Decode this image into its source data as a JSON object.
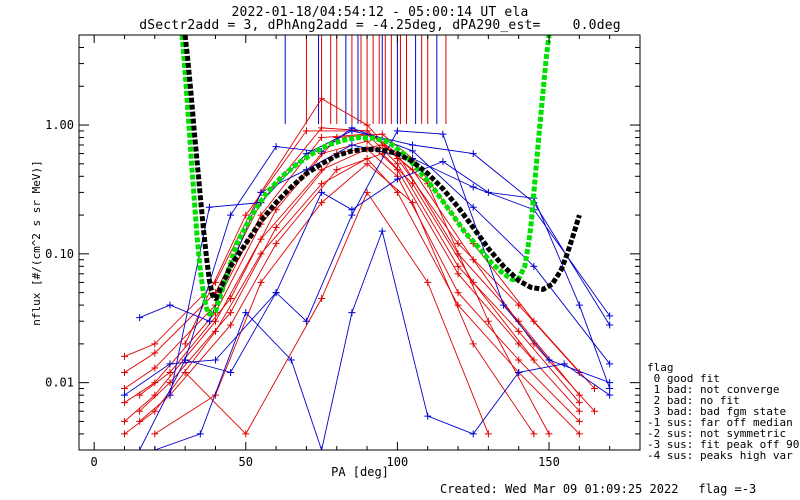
{
  "title_line1": "2022-01-18/04:54:12 - 05:00:14 UT ela",
  "title_line2": "dSectr2add = 3, dPhAng2add = -4.25deg, dPA290_est=    0.0deg",
  "footer": {
    "created": "Created: Wed Mar 09 01:09:25 2022",
    "flag": "flag =-3"
  },
  "legend": {
    "title": "flag",
    "items": [
      " 0 good fit",
      " 1 bad: not converge",
      " 2 bad: no fit",
      " 3 bad: bad fgm state",
      "-1 sus: far off median",
      "-2 sus: not symmetric",
      "-3 sus: fit peak off 90",
      "-4 sus: peaks high var"
    ]
  },
  "colors": {
    "red": "#e00000",
    "blue": "#0000d0",
    "green": "#00e000",
    "black": "#000000"
  },
  "chart_data": {
    "type": "line",
    "xlabel": "PA [deg]",
    "ylabel": "nflux [#/(cm^2 s sr MeV)]",
    "xlim": [
      -5,
      180
    ],
    "ylim": [
      0.003,
      5
    ],
    "ylog": true,
    "xticks": [
      0,
      50,
      100,
      150
    ],
    "xtick_labels": [
      "0",
      "50",
      "100",
      "150"
    ],
    "yticks": [
      0.01,
      0.1,
      1.0
    ],
    "ytick_labels": [
      "0.01",
      "0.10",
      "1.00"
    ],
    "vlines": [
      {
        "x": 63,
        "color": "blue"
      },
      {
        "x": 70,
        "color": "red"
      },
      {
        "x": 74,
        "color": "blue"
      },
      {
        "x": 75,
        "color": "red"
      },
      {
        "x": 78,
        "color": "red"
      },
      {
        "x": 80,
        "color": "red"
      },
      {
        "x": 83,
        "color": "blue"
      },
      {
        "x": 85,
        "color": "red"
      },
      {
        "x": 87,
        "color": "blue"
      },
      {
        "x": 88,
        "color": "red"
      },
      {
        "x": 90,
        "color": "red"
      },
      {
        "x": 92,
        "color": "red"
      },
      {
        "x": 94,
        "color": "red"
      },
      {
        "x": 95,
        "color": "blue"
      },
      {
        "x": 96,
        "color": "red"
      },
      {
        "x": 98,
        "color": "red"
      },
      {
        "x": 100,
        "color": "blue"
      },
      {
        "x": 101,
        "color": "red"
      },
      {
        "x": 103,
        "color": "red"
      },
      {
        "x": 106,
        "color": "blue"
      },
      {
        "x": 108,
        "color": "red"
      },
      {
        "x": 110,
        "color": "red"
      },
      {
        "x": 113,
        "color": "blue"
      },
      {
        "x": 116,
        "color": "red"
      }
    ],
    "fits": [
      {
        "name": "",
        "color": "green",
        "x": [
          29,
          30,
          31,
          32,
          33,
          34,
          35,
          36,
          37,
          38,
          40,
          43,
          47,
          52,
          57,
          62,
          67,
          72,
          77,
          82,
          87,
          92,
          97,
          102,
          107,
          112,
          117,
          122,
          127,
          131,
          135,
          138,
          140,
          142,
          143,
          144,
          145,
          146,
          147,
          148,
          149,
          150
        ],
        "y": [
          5,
          2.6,
          1.2,
          0.55,
          0.27,
          0.13,
          0.075,
          0.05,
          0.038,
          0.034,
          0.036,
          0.06,
          0.12,
          0.2,
          0.3,
          0.4,
          0.5,
          0.6,
          0.7,
          0.76,
          0.8,
          0.79,
          0.74,
          0.6,
          0.45,
          0.32,
          0.22,
          0.15,
          0.11,
          0.085,
          0.07,
          0.063,
          0.064,
          0.08,
          0.11,
          0.16,
          0.3,
          0.55,
          1.0,
          1.8,
          3.2,
          5
        ]
      },
      {
        "name": "",
        "color": "black",
        "x": [
          30,
          31,
          32,
          33,
          34,
          35,
          36,
          37,
          38,
          39,
          40,
          42,
          45,
          50,
          55,
          60,
          65,
          70,
          75,
          80,
          85,
          90,
          95,
          100,
          105,
          110,
          115,
          120,
          125,
          130,
          135,
          140,
          144,
          148,
          151,
          154,
          156,
          158,
          160
        ],
        "y": [
          5,
          3.0,
          1.7,
          0.9,
          0.5,
          0.28,
          0.16,
          0.095,
          0.062,
          0.048,
          0.045,
          0.056,
          0.08,
          0.12,
          0.18,
          0.25,
          0.33,
          0.42,
          0.5,
          0.58,
          0.63,
          0.65,
          0.64,
          0.6,
          0.52,
          0.42,
          0.32,
          0.23,
          0.16,
          0.11,
          0.08,
          0.062,
          0.055,
          0.053,
          0.058,
          0.075,
          0.1,
          0.14,
          0.2
        ]
      }
    ],
    "series": [
      {
        "color": "red",
        "x": [
          10,
          20,
          40,
          55,
          75,
          90,
          100,
          120,
          140,
          160
        ],
        "y": [
          0.016,
          0.02,
          0.06,
          0.3,
          1.6,
          1.0,
          0.55,
          0.12,
          0.04,
          0.012
        ]
      },
      {
        "color": "red",
        "x": [
          10,
          20,
          40,
          55,
          75,
          90,
          100,
          120,
          140,
          160
        ],
        "y": [
          0.012,
          0.017,
          0.05,
          0.25,
          0.95,
          0.9,
          0.6,
          0.1,
          0.03,
          0.008
        ]
      },
      {
        "color": "red",
        "x": [
          10,
          20,
          40,
          55,
          75,
          90,
          100,
          120,
          140,
          160
        ],
        "y": [
          0.009,
          0.013,
          0.04,
          0.2,
          0.8,
          0.85,
          0.5,
          0.08,
          0.025,
          0.007
        ]
      },
      {
        "color": "red",
        "x": [
          10,
          20,
          40,
          55,
          75,
          90,
          100,
          120,
          140,
          160
        ],
        "y": [
          0.007,
          0.01,
          0.035,
          0.17,
          0.6,
          0.75,
          0.45,
          0.07,
          0.02,
          0.006
        ]
      },
      {
        "color": "red",
        "x": [
          10,
          20,
          40,
          55,
          75,
          90,
          100,
          120,
          140,
          160
        ],
        "y": [
          0.005,
          0.008,
          0.03,
          0.13,
          0.45,
          0.65,
          0.4,
          0.05,
          0.015,
          0.005
        ]
      },
      {
        "color": "red",
        "x": [
          10,
          20,
          40,
          55,
          75,
          90,
          100,
          120,
          140,
          160
        ],
        "y": [
          0.004,
          0.006,
          0.025,
          0.1,
          0.35,
          0.55,
          0.3,
          0.04,
          0.012,
          0.004
        ]
      },
      {
        "color": "red",
        "x": [
          15,
          25,
          45,
          60,
          80,
          95,
          105,
          125,
          145,
          165
        ],
        "y": [
          0.008,
          0.012,
          0.045,
          0.22,
          0.8,
          0.85,
          0.55,
          0.12,
          0.03,
          0.009
        ]
      },
      {
        "color": "red",
        "x": [
          15,
          25,
          45,
          60,
          80,
          95,
          105,
          125,
          145,
          165
        ],
        "y": [
          0.006,
          0.01,
          0.035,
          0.16,
          0.6,
          0.7,
          0.45,
          0.09,
          0.02,
          0.006
        ]
      },
      {
        "color": "red",
        "x": [
          15,
          25,
          45,
          60,
          80,
          95,
          105,
          125,
          145
        ],
        "y": [
          0.005,
          0.008,
          0.028,
          0.12,
          0.45,
          0.6,
          0.35,
          0.06,
          0.015
        ]
      },
      {
        "color": "red",
        "x": [
          30,
          50,
          75,
          90,
          110,
          130
        ],
        "y": [
          0.012,
          0.004,
          0.045,
          0.3,
          0.06,
          0.004
        ]
      },
      {
        "color": "red",
        "x": [
          20,
          40,
          55,
          75,
          90,
          105,
          125,
          145
        ],
        "y": [
          0.004,
          0.008,
          0.06,
          0.25,
          0.5,
          0.25,
          0.02,
          0.004
        ]
      },
      {
        "color": "red",
        "x": [
          30,
          50,
          70,
          90,
          110,
          130,
          150
        ],
        "y": [
          0.02,
          0.2,
          0.9,
          0.9,
          0.35,
          0.03,
          0.004
        ]
      },
      {
        "color": "blue",
        "x": [
          15,
          25,
          38,
          55,
          70,
          85,
          105,
          125,
          145,
          170
        ],
        "y": [
          0.032,
          0.04,
          0.03,
          0.3,
          0.45,
          0.7,
          0.55,
          0.33,
          0.22,
          0.033
        ]
      },
      {
        "color": "blue",
        "x": [
          25,
          38,
          55,
          70,
          85,
          105,
          125,
          145,
          170
        ],
        "y": [
          0.008,
          0.23,
          0.25,
          0.6,
          0.9,
          0.7,
          0.6,
          0.25,
          0.028
        ]
      },
      {
        "color": "blue",
        "x": [
          15,
          30,
          45,
          60,
          75,
          85,
          105,
          125,
          145,
          170
        ],
        "y": [
          0.003,
          0.015,
          0.2,
          0.68,
          0.62,
          0.95,
          0.63,
          0.23,
          0.08,
          0.014
        ]
      },
      {
        "color": "blue",
        "x": [
          10,
          25,
          40,
          60,
          70,
          85,
          100,
          115,
          135,
          150,
          170
        ],
        "y": [
          0.008,
          0.014,
          0.015,
          0.05,
          0.03,
          0.2,
          0.9,
          0.85,
          0.04,
          0.015,
          0.01
        ]
      },
      {
        "color": "blue",
        "x": [
          20,
          35,
          50,
          65,
          75,
          85,
          95,
          110,
          125,
          140,
          155,
          170
        ],
        "y": [
          0.003,
          0.004,
          0.035,
          0.015,
          0.003,
          0.035,
          0.15,
          0.0055,
          0.004,
          0.012,
          0.014,
          0.008
        ]
      },
      {
        "color": "blue",
        "x": [
          30,
          45,
          60,
          75,
          85,
          100,
          115,
          130,
          145,
          160,
          170
        ],
        "y": [
          0.015,
          0.012,
          0.05,
          0.3,
          0.22,
          0.38,
          0.52,
          0.3,
          0.27,
          0.04,
          0.009
        ]
      }
    ]
  }
}
